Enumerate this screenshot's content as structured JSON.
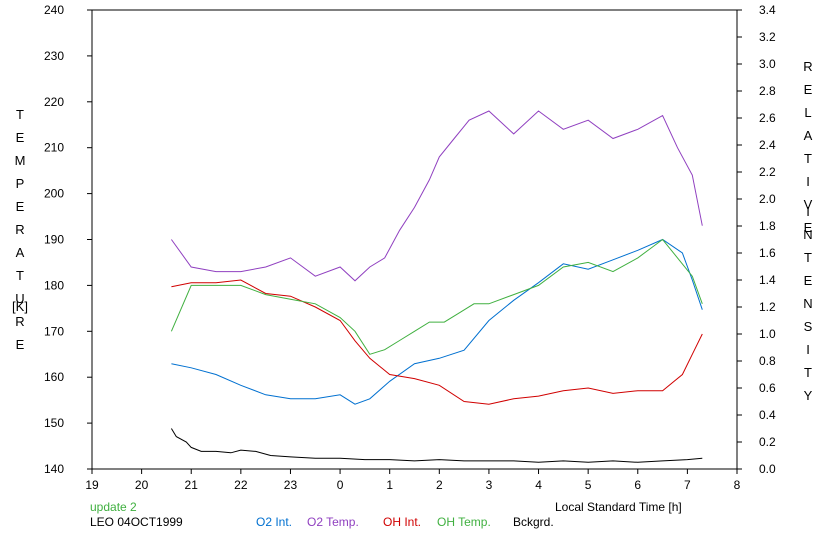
{
  "chart_data": {
    "type": "line",
    "left_axis_title": "TEMPERATURE",
    "left_axis_unit": "[K]",
    "right_axis_title": "RELATIVE",
    "right_axis_title2": "INTENSITY",
    "xlabel": "Local Standard Time [h]",
    "x_tick_labels": [
      "19",
      "20",
      "21",
      "22",
      "23",
      "0",
      "1",
      "2",
      "3",
      "4",
      "5",
      "6",
      "7",
      "8"
    ],
    "y_left_ticks": [
      140,
      150,
      160,
      170,
      180,
      190,
      200,
      210,
      220,
      230,
      240
    ],
    "y_right_ticks": [
      "0.0",
      "0.2",
      "0.4",
      "0.6",
      "0.8",
      "1.0",
      "1.2",
      "1.4",
      "1.6",
      "1.8",
      "2.0",
      "2.2",
      "2.4",
      "2.6",
      "2.8",
      "3.0",
      "3.2",
      "3.4"
    ],
    "xlim": [
      19,
      32
    ],
    "ylim_left": [
      140,
      240
    ],
    "ylim_right": [
      0,
      3.4
    ],
    "grid": false,
    "x_is_hours_after_midnight_continuing_past_24": true,
    "series": [
      {
        "name": "O2 Int.",
        "axis": "right",
        "color": "#0070d0",
        "x": [
          20.6,
          21.0,
          21.5,
          22.0,
          22.5,
          23.0,
          23.5,
          24.0,
          24.3,
          24.6,
          25.0,
          25.5,
          26.0,
          26.5,
          27.0,
          27.5,
          28.0,
          28.5,
          29.0,
          29.5,
          30.0,
          30.5,
          30.9,
          31.1,
          31.3
        ],
        "y": [
          0.78,
          0.75,
          0.7,
          0.62,
          0.55,
          0.52,
          0.52,
          0.55,
          0.48,
          0.52,
          0.65,
          0.78,
          0.82,
          0.88,
          1.1,
          1.25,
          1.38,
          1.52,
          1.48,
          1.55,
          1.62,
          1.7,
          1.6,
          1.4,
          1.18
        ]
      },
      {
        "name": "O2 Temp.",
        "axis": "left",
        "color": "#9040c0",
        "x": [
          20.6,
          21.0,
          21.5,
          22.0,
          22.5,
          23.0,
          23.5,
          24.0,
          24.3,
          24.6,
          24.9,
          25.2,
          25.5,
          25.8,
          26.0,
          26.3,
          26.6,
          27.0,
          27.5,
          28.0,
          28.5,
          29.0,
          29.5,
          30.0,
          30.5,
          30.8,
          31.1,
          31.3
        ],
        "y": [
          190,
          184,
          183,
          183,
          184,
          186,
          182,
          184,
          181,
          184,
          186,
          192,
          197,
          203,
          208,
          212,
          216,
          218,
          213,
          218,
          214,
          216,
          212,
          214,
          217,
          210,
          204,
          193
        ]
      },
      {
        "name": "OH Int.",
        "axis": "right",
        "color": "#d00000",
        "x": [
          20.6,
          21.0,
          21.5,
          22.0,
          22.5,
          23.0,
          23.5,
          24.0,
          24.3,
          24.6,
          25.0,
          25.5,
          26.0,
          26.5,
          27.0,
          27.5,
          28.0,
          28.5,
          29.0,
          29.5,
          30.0,
          30.5,
          30.9,
          31.1,
          31.3
        ],
        "y": [
          1.35,
          1.38,
          1.38,
          1.4,
          1.3,
          1.28,
          1.2,
          1.1,
          0.95,
          0.82,
          0.7,
          0.67,
          0.62,
          0.5,
          0.48,
          0.52,
          0.54,
          0.58,
          0.6,
          0.56,
          0.58,
          0.58,
          0.7,
          0.85,
          1.0
        ]
      },
      {
        "name": "OH Temp.",
        "axis": "left",
        "color": "#40b040",
        "x": [
          20.6,
          21.0,
          21.5,
          22.0,
          22.5,
          23.0,
          23.5,
          24.0,
          24.3,
          24.6,
          24.9,
          25.2,
          25.5,
          25.8,
          26.1,
          26.4,
          26.7,
          27.0,
          27.5,
          28.0,
          28.5,
          29.0,
          29.5,
          30.0,
          30.5,
          30.8,
          31.1,
          31.3
        ],
        "y": [
          170,
          180,
          180,
          180,
          178,
          177,
          176,
          173,
          170,
          165,
          166,
          168,
          170,
          172,
          172,
          174,
          176,
          176,
          178,
          180,
          184,
          185,
          183,
          186,
          190,
          186,
          182,
          176
        ]
      },
      {
        "name": "Bckgrd.",
        "axis": "right",
        "color": "#000000",
        "x": [
          20.6,
          20.7,
          20.9,
          21.0,
          21.2,
          21.5,
          21.8,
          22.0,
          22.3,
          22.6,
          23.0,
          23.5,
          24.0,
          24.5,
          25.0,
          25.5,
          26.0,
          26.5,
          27.0,
          27.5,
          28.0,
          28.5,
          29.0,
          29.5,
          30.0,
          30.5,
          31.0,
          31.3
        ],
        "y": [
          0.3,
          0.24,
          0.2,
          0.16,
          0.13,
          0.13,
          0.12,
          0.14,
          0.13,
          0.1,
          0.09,
          0.08,
          0.08,
          0.07,
          0.07,
          0.06,
          0.07,
          0.06,
          0.06,
          0.06,
          0.05,
          0.06,
          0.05,
          0.06,
          0.05,
          0.06,
          0.07,
          0.08
        ]
      }
    ]
  },
  "footer": {
    "update_label": "update 2",
    "update_color": "#40b040",
    "station_label": "LEO 04OCT1999"
  }
}
